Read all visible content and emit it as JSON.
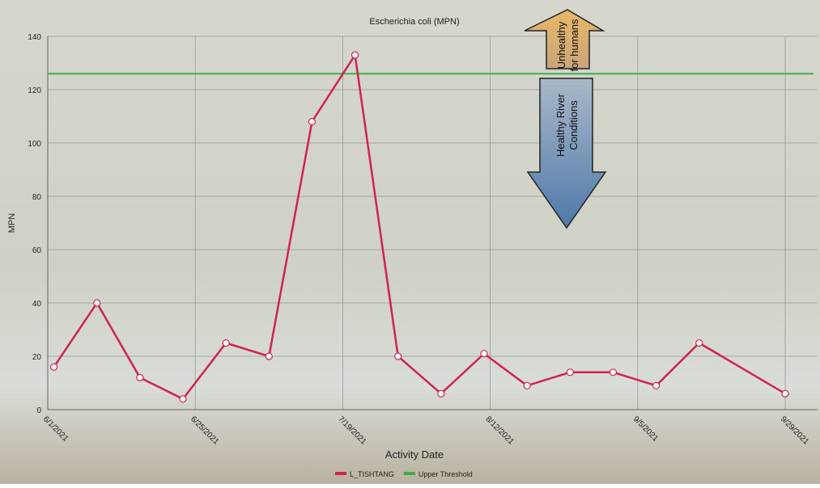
{
  "chart_data": {
    "type": "line",
    "title": "Escherichia coli (MPN)",
    "x_label": "Activity Date",
    "y_label": "MPN",
    "x": [
      "2021-06-02",
      "2021-06-09",
      "2021-06-16",
      "2021-06-23",
      "2021-06-30",
      "2021-07-07",
      "2021-07-14",
      "2021-07-21",
      "2021-07-28",
      "2021-08-04",
      "2021-08-11",
      "2021-08-18",
      "2021-08-25",
      "2021-09-01",
      "2021-09-08",
      "2021-09-15",
      "2021-09-29"
    ],
    "series": [
      {
        "name": "L_TISHTANG",
        "color": "#d0234f",
        "values": [
          16,
          40,
          12,
          4,
          25,
          20,
          108,
          133,
          20,
          6,
          21,
          9,
          14,
          14,
          9,
          25,
          6
        ]
      }
    ],
    "threshold": {
      "name": "Upper Threshold",
      "value": 126,
      "color": "#3fae4a"
    },
    "xlim": [
      "2021-06-01",
      "2021-09-29"
    ],
    "xticks": [
      {
        "value": "2021-06-01",
        "label": "6/1/2021"
      },
      {
        "value": "2021-06-25",
        "label": "6/25/2021"
      },
      {
        "value": "2021-07-19",
        "label": "7/19/2021"
      },
      {
        "value": "2021-08-12",
        "label": "8/12/2021"
      },
      {
        "value": "2021-09-05",
        "label": "9/5/2021"
      },
      {
        "value": "2021-09-29",
        "label": "9/29/2021"
      }
    ],
    "ylim": [
      0,
      140
    ],
    "yticks": [
      0,
      20,
      40,
      60,
      80,
      100,
      120,
      140
    ],
    "grid": true,
    "annotations": [
      {
        "lines": [
          "Unhealthy",
          "for humans"
        ],
        "color": "#d9a45a"
      },
      {
        "lines": [
          "Healthy River",
          "Conditions"
        ],
        "color": "#5f86b5"
      }
    ]
  }
}
